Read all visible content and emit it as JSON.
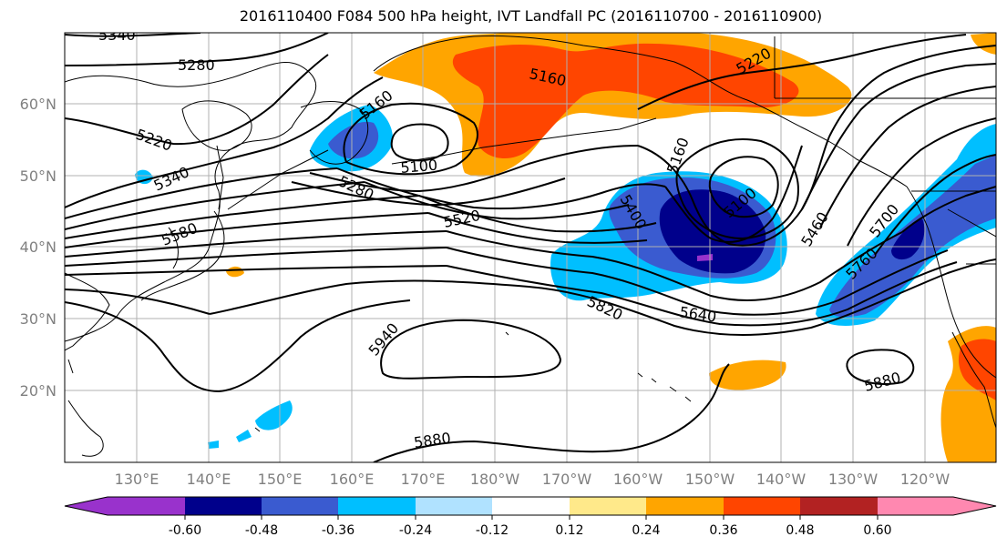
{
  "title": "2016110400 F084 500 hPa height, IVT Landfall PC (2016110700 - 2016110900)",
  "map": {
    "lat_labels": [
      "60°N",
      "50°N",
      "40°N",
      "30°N",
      "20°N"
    ],
    "lon_labels": [
      "130°E",
      "140°E",
      "150°E",
      "160°E",
      "170°E",
      "180°W",
      "170°W",
      "160°W",
      "150°W",
      "140°W",
      "130°W",
      "120°W"
    ],
    "contour_labels": [
      "5340",
      "5280",
      "5220",
      "5340",
      "5580",
      "5160",
      "5100",
      "5280",
      "5520",
      "5160",
      "5220",
      "5160",
      "5100",
      "5400",
      "5460",
      "5700",
      "5760",
      "5820",
      "5640",
      "5940",
      "5880",
      "5880"
    ]
  },
  "colorbar": {
    "tick_labels": [
      "-0.60",
      "-0.48",
      "-0.36",
      "-0.24",
      "-0.12",
      "0.12",
      "0.24",
      "0.36",
      "0.48",
      "0.60"
    ],
    "colors": [
      "#9932cc",
      "#00008b",
      "#3a5bd0",
      "#00bfff",
      "#b0e2ff",
      "#ffffff",
      "#ffe98a",
      "#ffa500",
      "#ff4500",
      "#b22222",
      "#ff88b0"
    ]
  }
}
